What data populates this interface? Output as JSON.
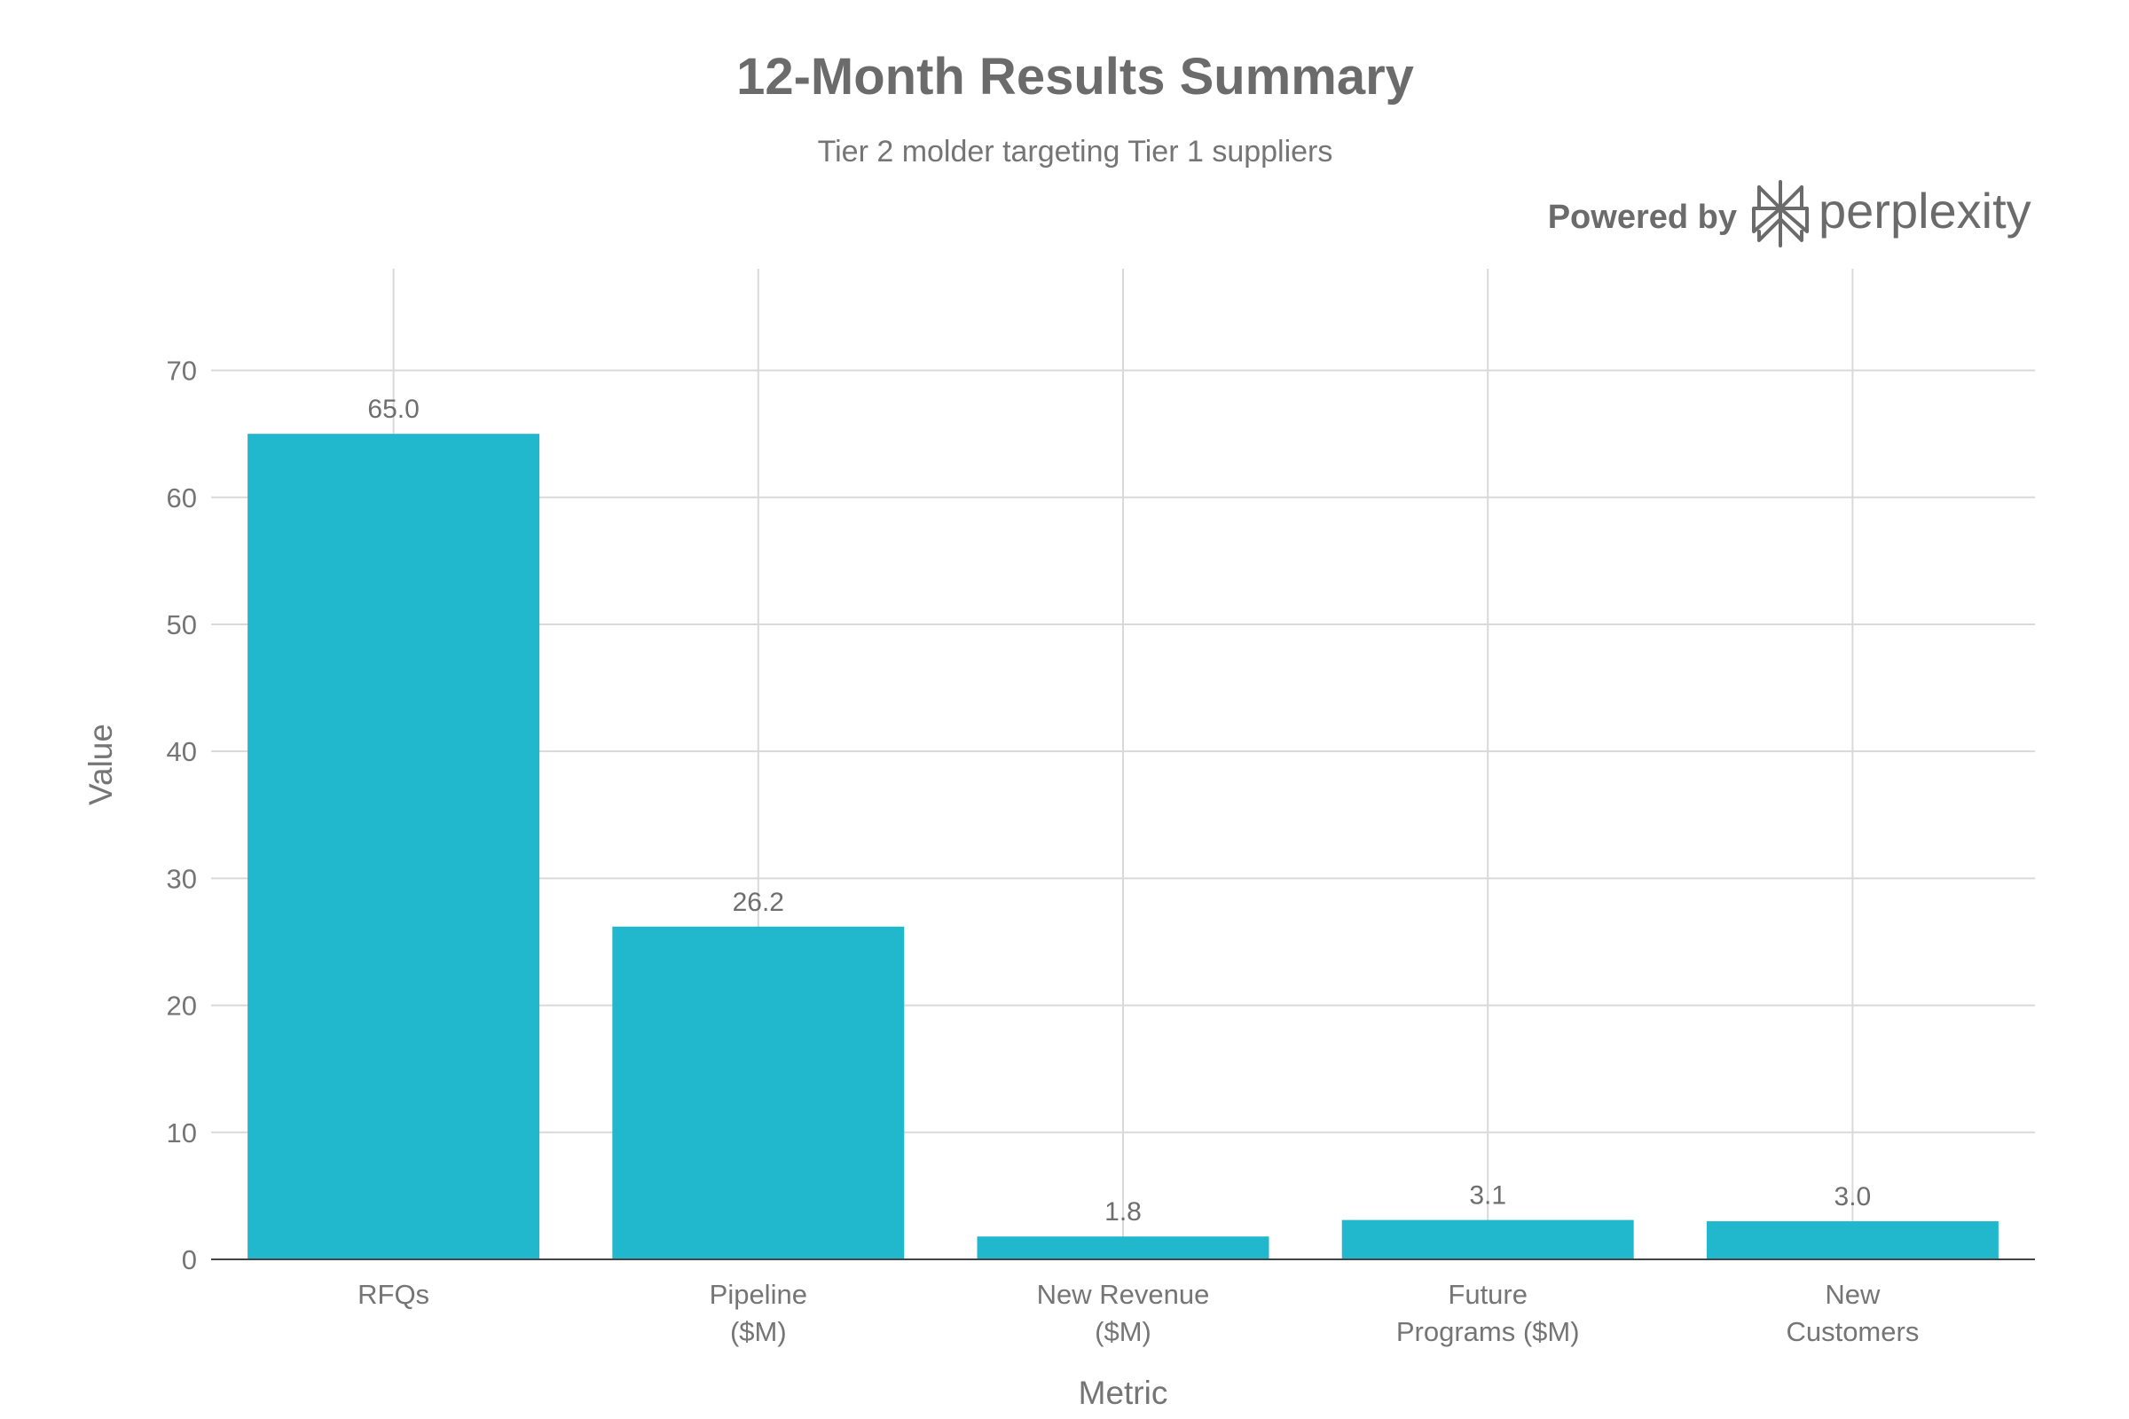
{
  "chart_data": {
    "type": "bar",
    "title": "12-Month Results Summary",
    "subtitle": "Tier 2 molder targeting Tier 1 suppliers",
    "xlabel": "Metric",
    "ylabel": "Value",
    "categories": [
      [
        "RFQs"
      ],
      [
        "Pipeline",
        "($M)"
      ],
      [
        "New Revenue",
        "($M)"
      ],
      [
        "Future",
        "Programs ($M)"
      ],
      [
        "New",
        "Customers"
      ]
    ],
    "values": [
      65.0,
      26.2,
      1.8,
      3.1,
      3.0
    ],
    "data_labels": [
      "65.0",
      "26.2",
      "1.8",
      "3.1",
      "3.0"
    ],
    "ylim": [
      0,
      78
    ],
    "yticks": [
      0,
      10,
      20,
      30,
      40,
      50,
      60,
      70
    ],
    "grid": true,
    "legend": "none",
    "bar_color": "#21b7cc"
  },
  "branding": {
    "powered_by": "Powered by",
    "brand_name": "perplexity",
    "icon": "perplexity-logo-icon"
  }
}
